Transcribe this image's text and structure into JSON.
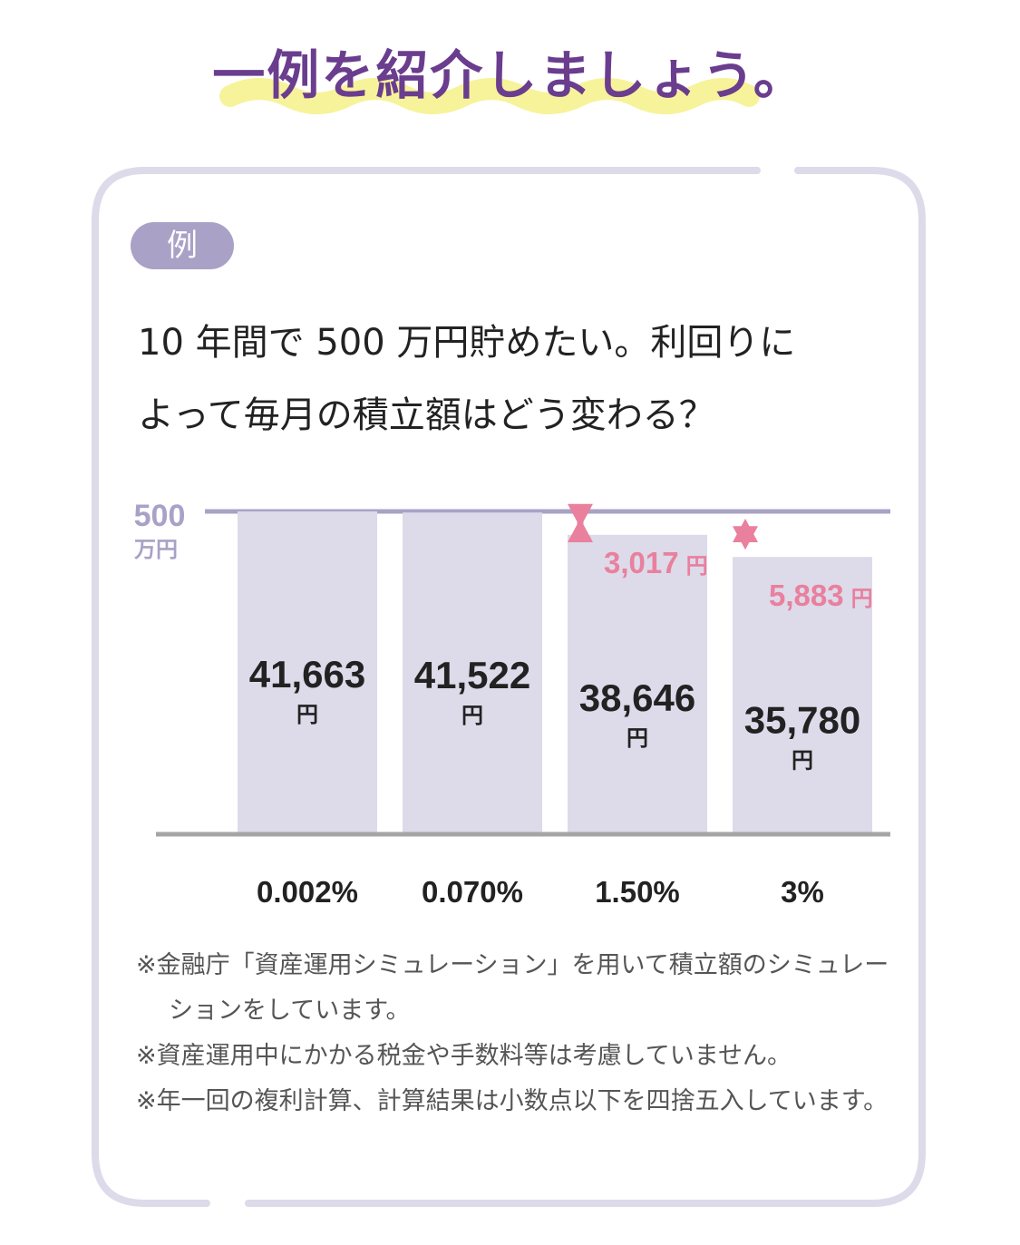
{
  "heading": {
    "text": "一例を紹介しましょう。"
  },
  "example_badge": "例",
  "question": {
    "line1": "10 年間で 500 万円貯めたい。利回りに",
    "line2": "よって毎月の積立額はどう変わる？"
  },
  "chart_data": {
    "type": "bar",
    "categories": [
      "0.002%",
      "0.070%",
      "1.50%",
      "3%"
    ],
    "values": [
      41663,
      41522,
      38646,
      35780
    ],
    "value_labels": [
      "41,663",
      "41,522",
      "38,646",
      "35,780"
    ],
    "unit": "円",
    "ylim": [
      0,
      41663
    ],
    "y_reference": {
      "value_label": "500",
      "unit_label": "万円"
    },
    "differences": [
      {
        "category": "1.50%",
        "label": "3,017",
        "unit": "円"
      },
      {
        "category": "3%",
        "label": "5,883",
        "unit": "円"
      }
    ],
    "grid": false,
    "legend": "none"
  },
  "notes": [
    "※金融庁「資産運用シミュレーション」を用いて積立額のシミュレーションをしています。",
    "※資産運用中にかかる税金や手数料等は考慮していません。",
    "※年一回の複利計算、計算結果は小数点以下を四捨五入しています。"
  ],
  "colors": {
    "heading": "#6a3d8e",
    "highlight": "#f7f39a",
    "frame": "#dddae9",
    "bar": "#dddae9",
    "reference": "#a9a1c6",
    "baseline": "#a5a5a5",
    "difference": "#e9809d"
  }
}
